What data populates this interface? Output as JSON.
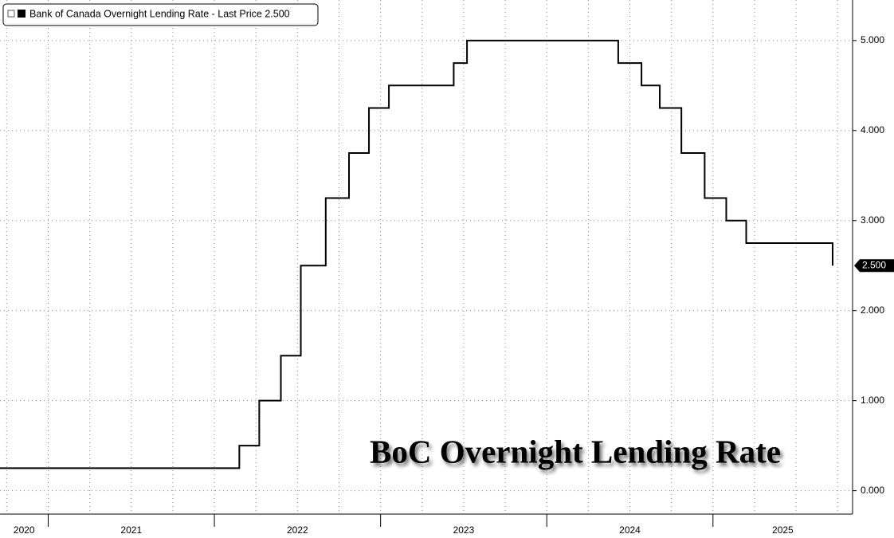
{
  "chart_data": {
    "type": "step",
    "annotation": "BoC Overnight Lending Rate",
    "series": [
      {
        "name": "Bank of Canada Overnight Lending Rate - Last Price 2.500",
        "color": "#000000",
        "x": [
          2020.71,
          2022.15,
          2022.27,
          2022.4,
          2022.52,
          2022.67,
          2022.81,
          2022.93,
          2023.05,
          2023.44,
          2023.52,
          2024.43,
          2024.57,
          2024.68,
          2024.81,
          2024.95,
          2025.08,
          2025.2,
          2025.72
        ],
        "values": [
          0.25,
          0.5,
          1.0,
          1.5,
          2.5,
          3.25,
          3.75,
          4.25,
          4.5,
          4.75,
          5.0,
          4.75,
          4.5,
          4.25,
          3.75,
          3.25,
          3.0,
          2.75,
          2.5
        ],
        "last_label": "2.500"
      }
    ],
    "xlim": [
      2020.71,
      2025.84
    ],
    "xticks": [
      {
        "value": 2020,
        "label": "2020"
      },
      {
        "value": 2021,
        "label": "2021"
      },
      {
        "value": 2022,
        "label": "2022"
      },
      {
        "value": 2023,
        "label": "2023"
      },
      {
        "value": 2024,
        "label": "2024"
      },
      {
        "value": 2025,
        "label": "2025"
      }
    ],
    "ylim": [
      -0.26,
      5.45
    ],
    "yticks": [
      {
        "value": 0,
        "label": "0.000"
      },
      {
        "value": 1,
        "label": "1.000"
      },
      {
        "value": 2,
        "label": "2.000"
      },
      {
        "value": 3,
        "label": "3.000"
      },
      {
        "value": 4,
        "label": "4.000"
      },
      {
        "value": 5,
        "label": "5.000"
      }
    ],
    "grid": true,
    "minor_grid_step": 0.25
  }
}
